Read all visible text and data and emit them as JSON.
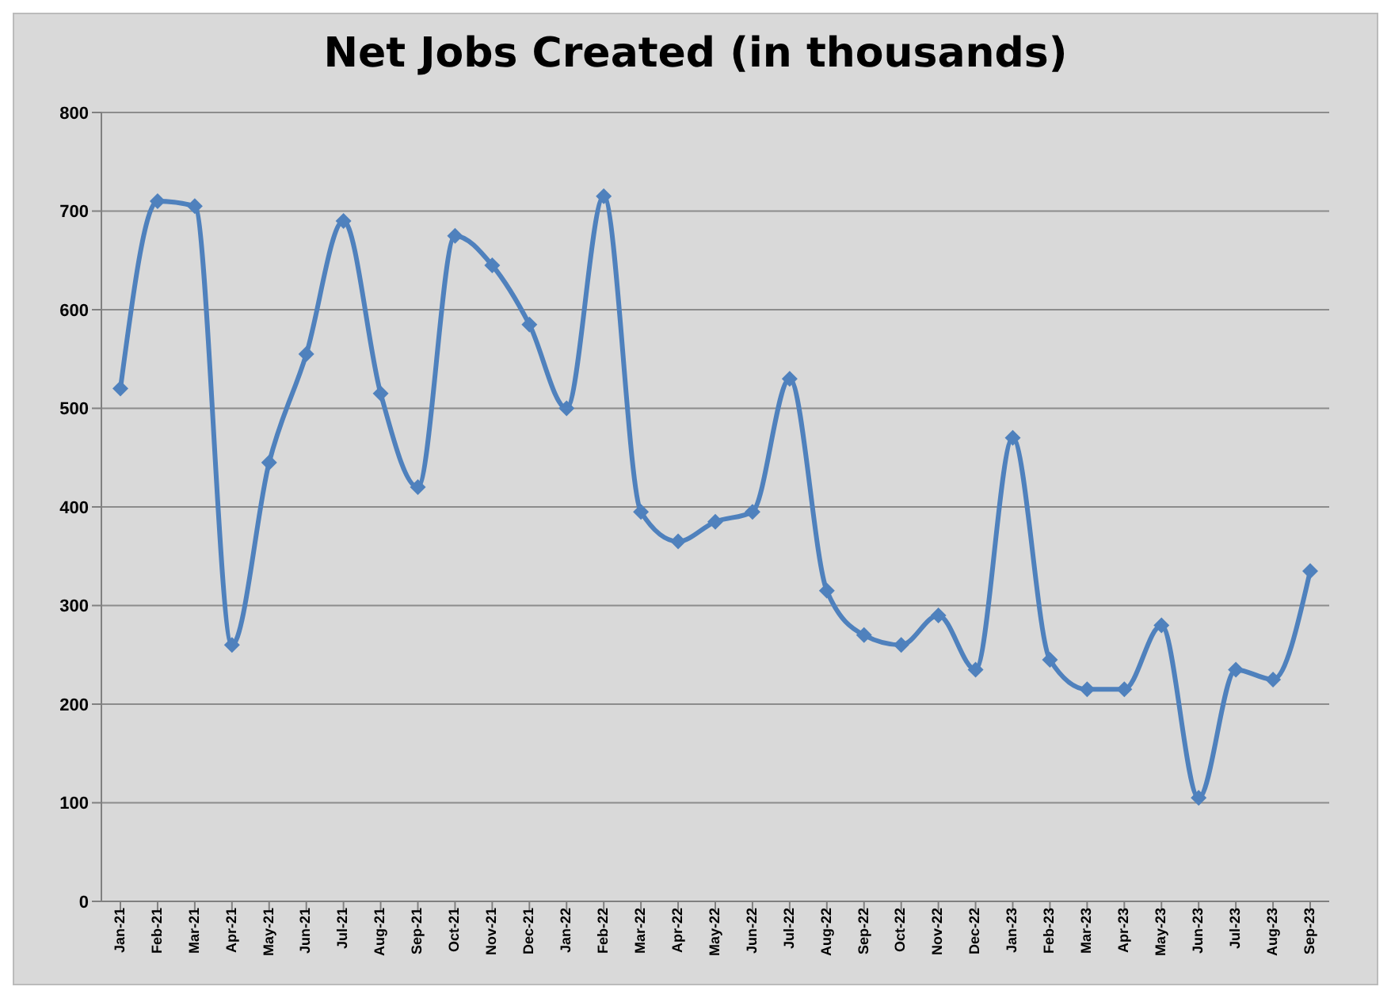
{
  "chart_data": {
    "type": "line",
    "title": "Net Jobs Created (in thousands)",
    "categories": [
      "Jan-21",
      "Feb-21",
      "Mar-21",
      "Apr-21",
      "May-21",
      "Jun-21",
      "Jul-21",
      "Aug-21",
      "Sep-21",
      "Oct-21",
      "Nov-21",
      "Dec-21",
      "Jan-22",
      "Feb-22",
      "Mar-22",
      "Apr-22",
      "May-22",
      "Jun-22",
      "Jul-22",
      "Aug-22",
      "Sep-22",
      "Oct-22",
      "Nov-22",
      "Dec-22",
      "Jan-23",
      "Feb-23",
      "Mar-23",
      "Apr-23",
      "May-23",
      "Jun-23",
      "Jul-23",
      "Aug-23",
      "Sep-23"
    ],
    "values": [
      520,
      710,
      705,
      260,
      445,
      555,
      690,
      515,
      420,
      675,
      645,
      585,
      500,
      715,
      395,
      365,
      385,
      395,
      530,
      315,
      270,
      260,
      290,
      235,
      470,
      245,
      215,
      215,
      280,
      105,
      235,
      225,
      335
    ],
    "color": "#4f81bd",
    "ylim": [
      0,
      800
    ],
    "yticks": [
      0,
      100,
      200,
      300,
      400,
      500,
      600,
      700,
      800
    ],
    "grid": "y",
    "marker": "diamond",
    "line_style": "solid"
  }
}
